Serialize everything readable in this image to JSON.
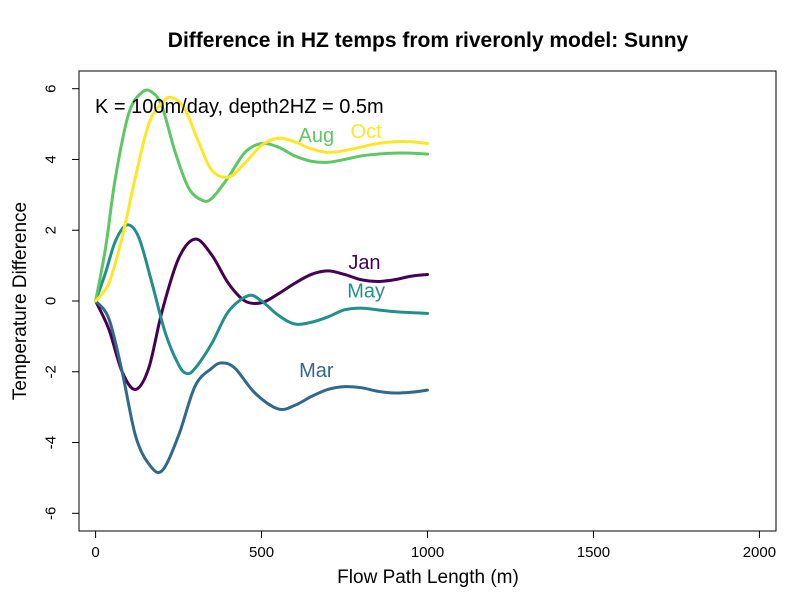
{
  "chart_data": {
    "type": "line",
    "title": "Difference in HZ temps from riveronly model: Sunny",
    "xlabel": "Flow Path Length (m)",
    "ylabel": "Temperature Difference",
    "xlim": [
      -50,
      2050
    ],
    "ylim": [
      -6.5,
      6.5
    ],
    "x_ticks": [
      0,
      500,
      1000,
      1500,
      2000
    ],
    "y_ticks": [
      -6,
      -4,
      -2,
      0,
      2,
      4,
      6
    ],
    "annotation": "K = 100m/day, depth2HZ = 0.5m",
    "grid": false,
    "legend": "none",
    "series": [
      {
        "name": "Jan",
        "color": "#440154",
        "x": [
          0,
          40,
          80,
          120,
          160,
          200,
          250,
          300,
          350,
          400,
          450,
          500,
          550,
          600,
          650,
          700,
          750,
          800,
          850,
          900,
          950,
          1000
        ],
        "y": [
          0,
          -0.8,
          -2.0,
          -2.5,
          -1.9,
          -0.3,
          1.2,
          1.75,
          1.3,
          0.5,
          0.0,
          -0.05,
          0.2,
          0.5,
          0.75,
          0.85,
          0.75,
          0.6,
          0.55,
          0.6,
          0.7,
          0.75
        ]
      },
      {
        "name": "Mar",
        "color": "#31688E",
        "x": [
          0,
          40,
          80,
          120,
          160,
          200,
          250,
          300,
          350,
          380,
          420,
          480,
          550,
          600,
          650,
          700,
          750,
          800,
          850,
          900,
          950,
          1000
        ],
        "y": [
          0,
          -0.5,
          -2.0,
          -3.8,
          -4.6,
          -4.8,
          -3.8,
          -2.4,
          -1.9,
          -1.75,
          -1.9,
          -2.6,
          -3.05,
          -2.95,
          -2.7,
          -2.5,
          -2.42,
          -2.45,
          -2.55,
          -2.6,
          -2.58,
          -2.52
        ]
      },
      {
        "name": "May",
        "color": "#21908C",
        "x": [
          0,
          30,
          60,
          95,
          130,
          170,
          210,
          250,
          275,
          300,
          350,
          400,
          460,
          500,
          550,
          600,
          650,
          700,
          750,
          800,
          850,
          900,
          950,
          1000
        ],
        "y": [
          0,
          0.8,
          1.7,
          2.15,
          1.8,
          0.5,
          -0.9,
          -1.8,
          -2.05,
          -1.9,
          -1.2,
          -0.3,
          0.15,
          0.0,
          -0.4,
          -0.65,
          -0.6,
          -0.45,
          -0.25,
          -0.2,
          -0.25,
          -0.3,
          -0.33,
          -0.35
        ]
      },
      {
        "name": "Aug",
        "color": "#5DC863",
        "x": [
          0,
          30,
          60,
          100,
          140,
          170,
          200,
          240,
          280,
          320,
          350,
          400,
          450,
          500,
          550,
          600,
          650,
          700,
          750,
          800,
          850,
          900,
          950,
          1000
        ],
        "y": [
          0,
          1.5,
          3.5,
          5.3,
          5.9,
          5.9,
          5.5,
          4.2,
          3.2,
          2.85,
          2.9,
          3.5,
          4.2,
          4.45,
          4.35,
          4.1,
          3.95,
          3.92,
          4.0,
          4.1,
          4.15,
          4.18,
          4.18,
          4.15
        ]
      },
      {
        "name": "Oct",
        "color": "#FDE725",
        "x": [
          0,
          40,
          80,
          120,
          160,
          200,
          230,
          270,
          310,
          350,
          400,
          450,
          500,
          550,
          600,
          650,
          700,
          750,
          800,
          850,
          900,
          950,
          1000
        ],
        "y": [
          0,
          0.5,
          1.8,
          3.5,
          5.0,
          5.6,
          5.75,
          5.4,
          4.5,
          3.7,
          3.5,
          3.9,
          4.4,
          4.6,
          4.5,
          4.3,
          4.2,
          4.25,
          4.35,
          4.45,
          4.5,
          4.5,
          4.45
        ]
      }
    ],
    "series_labels": [
      {
        "text": "Jan",
        "x": 810,
        "y": 0.9
      },
      {
        "text": "Mar",
        "x": 665,
        "y": -2.15
      },
      {
        "text": "May",
        "x": 815,
        "y": 0.1
      },
      {
        "text": "Aug",
        "x": 665,
        "y": 4.5
      },
      {
        "text": "Oct",
        "x": 815,
        "y": 4.6
      }
    ]
  }
}
